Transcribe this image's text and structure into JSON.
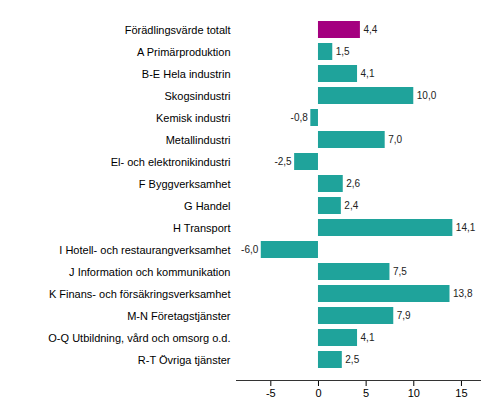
{
  "chart_data": {
    "type": "bar",
    "orientation": "horizontal",
    "categories": [
      "Förädlingsvärde totalt",
      "A Primärproduktion",
      "B-E Hela industrin",
      "Skogsindustri",
      "Kemisk industri",
      "Metallindustri",
      "El- och elektronikindustri",
      "F Byggverksamhet",
      "G Handel",
      "H Transport",
      "I Hotell- och restaurangverksamhet",
      "J Information och kommunikation",
      "K Finans- och försäkringsverksamhet",
      "M-N Företagstjänster",
      "O-Q Utbildning, vård och omsorg o.d.",
      "R-T Övriga tjänster"
    ],
    "values": [
      4.4,
      1.5,
      4.1,
      10.0,
      -0.8,
      7.0,
      -2.5,
      2.6,
      2.4,
      14.1,
      -6.0,
      7.5,
      13.8,
      7.9,
      4.1,
      2.5
    ],
    "value_labels": [
      "4,4",
      "1,5",
      "4,1",
      "10,0",
      "-0,8",
      "7,0",
      "-2,5",
      "2,6",
      "2,4",
      "14,1",
      "-6,0",
      "7,5",
      "13,8",
      "7,9",
      "4,1",
      "2,5"
    ],
    "colors": [
      "#a4007f",
      "#1fa39b",
      "#1fa39b",
      "#1fa39b",
      "#1fa39b",
      "#1fa39b",
      "#1fa39b",
      "#1fa39b",
      "#1fa39b",
      "#1fa39b",
      "#1fa39b",
      "#1fa39b",
      "#1fa39b",
      "#1fa39b",
      "#1fa39b",
      "#1fa39b"
    ],
    "xlim": [
      -8.6,
      17
    ],
    "xticks": [
      -5,
      0,
      5,
      10,
      15
    ],
    "data_labels": true,
    "grid": false
  }
}
